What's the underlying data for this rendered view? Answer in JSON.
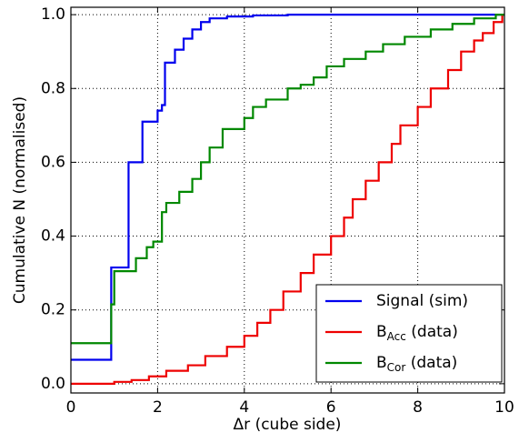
{
  "chart_data": {
    "type": "step",
    "xlabel": "Δr (cube side)",
    "ylabel": "Cumulative N (normalised)",
    "xlim": [
      0,
      10
    ],
    "ylim": [
      -0.025,
      1.02
    ],
    "xticks": [
      0,
      2,
      4,
      6,
      8,
      10
    ],
    "yticks": [
      {
        "value": 0,
        "label": "0.0"
      },
      0.2,
      0.4,
      0.6,
      0.8,
      {
        "value": 1,
        "label": "1.0"
      }
    ],
    "grid": true,
    "legend": "lower right",
    "series": [
      {
        "name": [
          "Signal (sim)"
        ],
        "color": "#0000ee",
        "x": [
          0,
          0.93,
          1.33,
          1.65,
          2.0,
          2.1,
          2.17,
          2.4,
          2.6,
          2.8,
          3.0,
          3.2,
          3.6,
          4.2,
          5.0,
          10
        ],
        "values": [
          0.065,
          0.315,
          0.6,
          0.71,
          0.74,
          0.755,
          0.87,
          0.905,
          0.935,
          0.96,
          0.98,
          0.99,
          0.995,
          0.998,
          1.0,
          1.0
        ]
      },
      {
        "name": [
          "B",
          "Acc",
          " (data)"
        ],
        "color": "#ee0000",
        "x": [
          0,
          1.0,
          1.4,
          1.8,
          2.2,
          2.7,
          3.1,
          3.6,
          4.0,
          4.3,
          4.6,
          4.9,
          5.3,
          5.6,
          6.0,
          6.3,
          6.5,
          6.8,
          7.1,
          7.4,
          7.6,
          8.0,
          8.3,
          8.7,
          9.0,
          9.3,
          9.5,
          9.75,
          9.95,
          10
        ],
        "values": [
          0.0,
          0.005,
          0.01,
          0.02,
          0.035,
          0.05,
          0.075,
          0.1,
          0.13,
          0.165,
          0.2,
          0.25,
          0.3,
          0.35,
          0.4,
          0.45,
          0.5,
          0.55,
          0.6,
          0.65,
          0.7,
          0.75,
          0.8,
          0.85,
          0.9,
          0.93,
          0.95,
          0.98,
          1.0,
          1.0
        ]
      },
      {
        "name": [
          "B",
          "Cor",
          " (data)"
        ],
        "color": "#008800",
        "x": [
          0,
          0.93,
          1.0,
          1.5,
          1.75,
          1.9,
          2.1,
          2.2,
          2.5,
          2.8,
          3.0,
          3.2,
          3.5,
          4.0,
          4.2,
          4.5,
          5.0,
          5.3,
          5.6,
          5.9,
          6.3,
          6.8,
          7.2,
          7.7,
          8.3,
          8.8,
          9.3,
          9.8,
          10
        ],
        "values": [
          0.11,
          0.215,
          0.305,
          0.34,
          0.37,
          0.385,
          0.465,
          0.49,
          0.52,
          0.555,
          0.6,
          0.64,
          0.69,
          0.72,
          0.75,
          0.77,
          0.8,
          0.81,
          0.83,
          0.86,
          0.88,
          0.9,
          0.92,
          0.94,
          0.96,
          0.975,
          0.99,
          1.0,
          1.0
        ]
      }
    ]
  }
}
